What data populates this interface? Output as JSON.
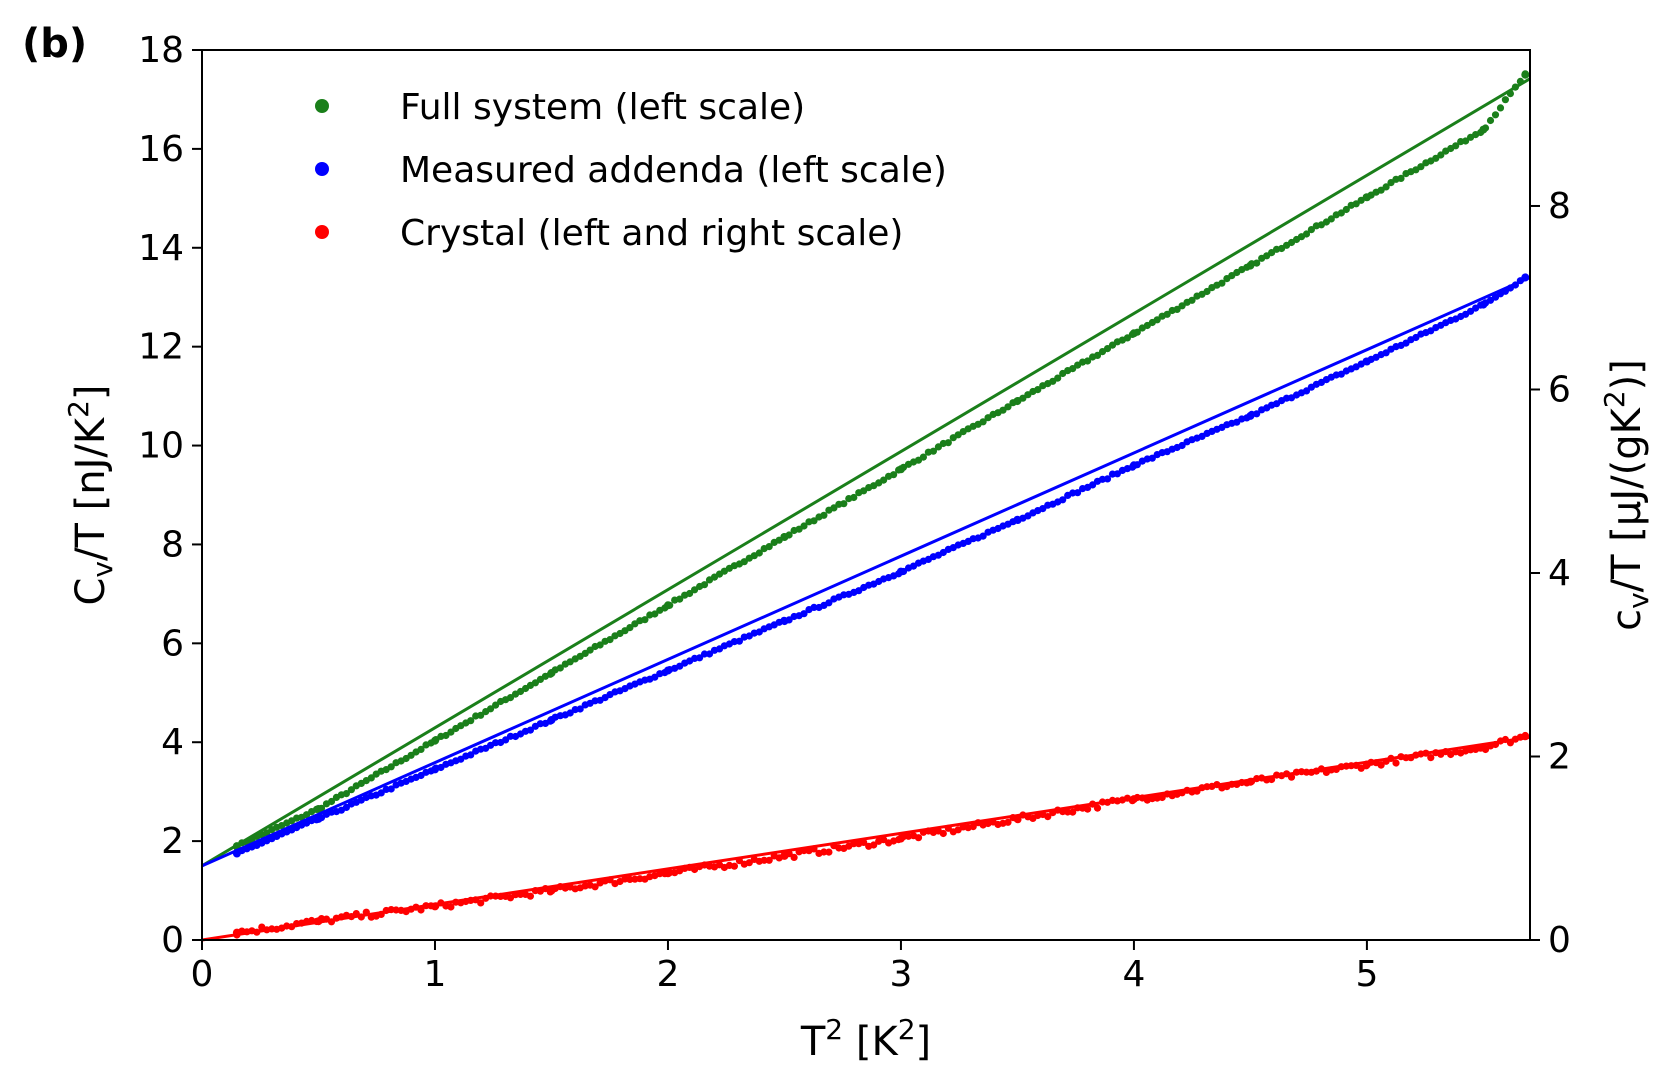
{
  "chart_data": {
    "type": "scatter",
    "panel_label": "(b)",
    "xlabel": "T² [K²]",
    "ylabel_left": "C_v/T   [nJ/K²]",
    "ylabel_right": "c_v/T   [μJ/(gK²)]",
    "xlim": [
      0,
      5.7
    ],
    "ylim_left": [
      0,
      18
    ],
    "ylim_right": [
      0,
      9.7
    ],
    "x_ticks": [
      "0",
      "1",
      "2",
      "3",
      "4",
      "5"
    ],
    "y_ticks_left": [
      "0",
      "2",
      "4",
      "6",
      "8",
      "10",
      "12",
      "14",
      "16",
      "18"
    ],
    "y_ticks_right": [
      "0",
      "2",
      "4",
      "6",
      "8"
    ],
    "grid": false,
    "legend_position": "top-left",
    "series": [
      {
        "name": "Full system (left scale)",
        "color": "#1a7f1a",
        "x": [
          0.15,
          0.5,
          1.0,
          1.5,
          2.0,
          2.5,
          3.0,
          3.5,
          4.0,
          4.5,
          5.0,
          5.5,
          5.68
        ],
        "y": [
          1.9,
          2.65,
          4.03,
          5.4,
          6.77,
          8.15,
          9.52,
          10.9,
          12.27,
          13.64,
          15.02,
          16.39,
          17.5
        ],
        "fit": {
          "x": [
            0,
            5.7
          ],
          "y": [
            1.5,
            17.42
          ]
        }
      },
      {
        "name": "Measured addenda (left scale)",
        "color": "#0000ff",
        "x": [
          0.15,
          0.5,
          1.0,
          1.5,
          2.0,
          2.5,
          3.0,
          3.5,
          4.0,
          4.5,
          5.0,
          5.5,
          5.68
        ],
        "y": [
          1.75,
          2.45,
          3.45,
          4.45,
          5.45,
          6.45,
          7.45,
          8.5,
          9.6,
          10.6,
          11.7,
          12.85,
          13.4
        ],
        "fit": {
          "x": [
            0,
            5.7
          ],
          "y": [
            1.5,
            13.4
          ]
        }
      },
      {
        "name": "Crystal (left and right scale)",
        "color": "#ff0000",
        "x": [
          0.15,
          0.5,
          1.0,
          1.5,
          2.0,
          2.5,
          3.0,
          3.5,
          4.0,
          4.5,
          5.0,
          5.5,
          5.68
        ],
        "y": [
          0.15,
          0.38,
          0.68,
          1.0,
          1.35,
          1.7,
          2.05,
          2.45,
          2.85,
          3.2,
          3.55,
          3.9,
          4.12
        ],
        "fit": {
          "x": [
            0,
            5.7
          ],
          "y": [
            0.0,
            4.1
          ]
        }
      }
    ]
  }
}
